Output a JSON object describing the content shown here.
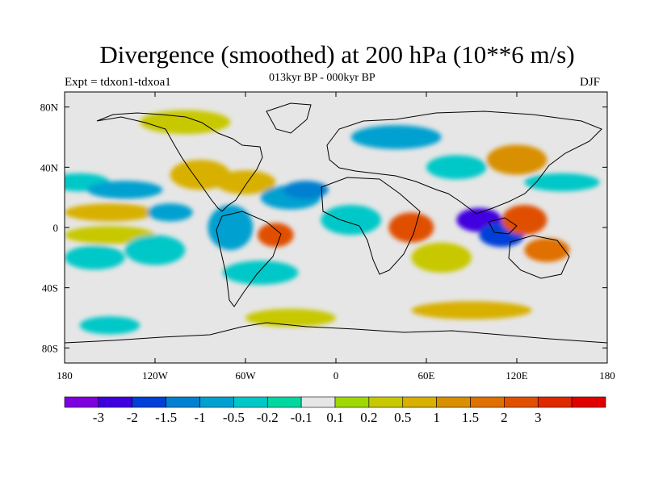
{
  "title": "Divergence (smoothed) at 200 hPa (10**6 m/s)",
  "experiment": "Expt = tdxon1-tdxoa1",
  "period": "013kyr BP - 000kyr BP",
  "season": "DJF",
  "chart_data": {
    "type": "heatmap",
    "title": "Divergence (smoothed) at 200 hPa (10**6 m/s)",
    "projection": "cylindrical equidistant",
    "xlim": [
      -180,
      180
    ],
    "ylim": [
      -90,
      90
    ],
    "x_ticks": [
      {
        "value": -180,
        "label": "180"
      },
      {
        "value": -120,
        "label": "120W"
      },
      {
        "value": -60,
        "label": "60W"
      },
      {
        "value": 0,
        "label": "0"
      },
      {
        "value": 60,
        "label": "60E"
      },
      {
        "value": 120,
        "label": "120E"
      },
      {
        "value": 180,
        "label": "180"
      }
    ],
    "y_ticks": [
      {
        "value": 80,
        "label": "80N"
      },
      {
        "value": 40,
        "label": "40N"
      },
      {
        "value": 0,
        "label": "0"
      },
      {
        "value": -40,
        "label": "40S"
      },
      {
        "value": -80,
        "label": "80S"
      }
    ],
    "colorbar": {
      "colors": [
        "#7f00df",
        "#3f00df",
        "#0040d8",
        "#0080d0",
        "#00a0d0",
        "#00c8c8",
        "#00d8a0",
        "#e6e6e6",
        "#a0d800",
        "#c8c800",
        "#d8b000",
        "#d89000",
        "#e07000",
        "#e05000",
        "#e02800",
        "#e00000"
      ],
      "labels": [
        "-3",
        "-2",
        "-1.5",
        "-1",
        "-0.5",
        "-0.2",
        "-0.1",
        "0.1",
        "0.2",
        "0.5",
        "1",
        "1.5",
        "2",
        "3"
      ]
    },
    "blobs": [
      {
        "lon": -150,
        "lat": 10,
        "rx": 30,
        "ry": 6,
        "bin": 10
      },
      {
        "lon": -170,
        "lat": 30,
        "rx": 20,
        "ry": 6,
        "bin": 5
      },
      {
        "lon": -140,
        "lat": 25,
        "rx": 25,
        "ry": 6,
        "bin": 4
      },
      {
        "lon": -150,
        "lat": -5,
        "rx": 30,
        "ry": 6,
        "bin": 9
      },
      {
        "lon": -160,
        "lat": -20,
        "rx": 20,
        "ry": 8,
        "bin": 5
      },
      {
        "lon": -120,
        "lat": -15,
        "rx": 20,
        "ry": 10,
        "bin": 5
      },
      {
        "lon": -110,
        "lat": 10,
        "rx": 15,
        "ry": 6,
        "bin": 4
      },
      {
        "lon": -90,
        "lat": 35,
        "rx": 20,
        "ry": 10,
        "bin": 10
      },
      {
        "lon": -60,
        "lat": 30,
        "rx": 20,
        "ry": 8,
        "bin": 10
      },
      {
        "lon": -70,
        "lat": 0,
        "rx": 15,
        "ry": 15,
        "bin": 4
      },
      {
        "lon": -40,
        "lat": -5,
        "rx": 12,
        "ry": 8,
        "bin": 13
      },
      {
        "lon": -50,
        "lat": -30,
        "rx": 25,
        "ry": 8,
        "bin": 5
      },
      {
        "lon": -30,
        "lat": 20,
        "rx": 20,
        "ry": 8,
        "bin": 4
      },
      {
        "lon": -20,
        "lat": 25,
        "rx": 15,
        "ry": 6,
        "bin": 3
      },
      {
        "lon": 10,
        "lat": 5,
        "rx": 20,
        "ry": 10,
        "bin": 5
      },
      {
        "lon": 50,
        "lat": 0,
        "rx": 15,
        "ry": 10,
        "bin": 13
      },
      {
        "lon": 70,
        "lat": -20,
        "rx": 20,
        "ry": 10,
        "bin": 9
      },
      {
        "lon": 95,
        "lat": 5,
        "rx": 15,
        "ry": 8,
        "bin": 1
      },
      {
        "lon": 110,
        "lat": -5,
        "rx": 15,
        "ry": 8,
        "bin": 2
      },
      {
        "lon": 125,
        "lat": 5,
        "rx": 15,
        "ry": 10,
        "bin": 13
      },
      {
        "lon": 140,
        "lat": -15,
        "rx": 15,
        "ry": 8,
        "bin": 12
      },
      {
        "lon": 120,
        "lat": 45,
        "rx": 20,
        "ry": 10,
        "bin": 11
      },
      {
        "lon": 80,
        "lat": 40,
        "rx": 20,
        "ry": 8,
        "bin": 5
      },
      {
        "lon": 40,
        "lat": 60,
        "rx": 30,
        "ry": 8,
        "bin": 4
      },
      {
        "lon": -100,
        "lat": 70,
        "rx": 30,
        "ry": 8,
        "bin": 9
      },
      {
        "lon": -30,
        "lat": -60,
        "rx": 30,
        "ry": 6,
        "bin": 9
      },
      {
        "lon": 90,
        "lat": -55,
        "rx": 40,
        "ry": 6,
        "bin": 10
      },
      {
        "lon": -150,
        "lat": -65,
        "rx": 20,
        "ry": 6,
        "bin": 5
      },
      {
        "lon": 150,
        "lat": 30,
        "rx": 25,
        "ry": 6,
        "bin": 5
      }
    ]
  }
}
